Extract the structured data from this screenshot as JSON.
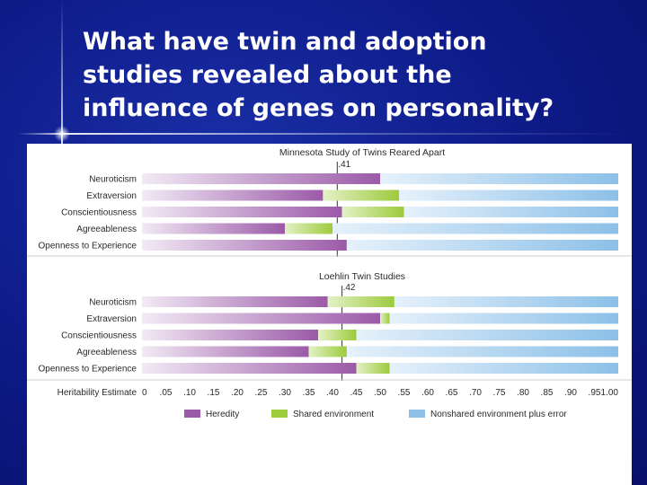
{
  "slide": {
    "title_lines": [
      "What have twin and adoption",
      "studies revealed about the",
      "influence of genes on personality?"
    ]
  },
  "chart_data": {
    "type": "stacked_bar",
    "traits": [
      "Neuroticism",
      "Extraversion",
      "Conscientiousness",
      "Agreeableness",
      "Openness to Experience"
    ],
    "x_axis": {
      "label": "Heritability Estimate",
      "range": [
        0,
        1.0
      ],
      "ticks": [
        "0",
        ".05",
        ".10",
        ".15",
        ".20",
        ".25",
        ".30",
        ".35",
        ".40",
        ".45",
        ".50",
        ".55",
        ".60",
        ".65",
        ".70",
        ".75",
        ".80",
        ".85",
        ".90",
        ".95",
        "1.00"
      ]
    },
    "legend": [
      {
        "key": "heredity",
        "label": "Heredity",
        "color": "#9b5aa8"
      },
      {
        "key": "shared",
        "label": "Shared environment",
        "color": "#9ccb3c"
      },
      {
        "key": "nonshared",
        "label": "Nonshared environment plus error",
        "color": "#8cc0e8"
      }
    ],
    "panels": [
      {
        "title": "Minnesota Study of Twins Reared Apart",
        "average_label": ".41",
        "average": 0.41,
        "bars": [
          {
            "trait": "Neuroticism",
            "heredity": 0.5,
            "shared": 0.0
          },
          {
            "trait": "Extraversion",
            "heredity": 0.38,
            "shared": 0.16
          },
          {
            "trait": "Conscientiousness",
            "heredity": 0.42,
            "shared": 0.13
          },
          {
            "trait": "Agreeableness",
            "heredity": 0.3,
            "shared": 0.1
          },
          {
            "trait": "Openness to Experience",
            "heredity": 0.43,
            "shared": 0.0
          }
        ]
      },
      {
        "title": "Loehlin Twin Studies",
        "average_label": ".42",
        "average": 0.42,
        "bars": [
          {
            "trait": "Neuroticism",
            "heredity": 0.39,
            "shared": 0.14
          },
          {
            "trait": "Extraversion",
            "heredity": 0.5,
            "shared": 0.02
          },
          {
            "trait": "Conscientiousness",
            "heredity": 0.37,
            "shared": 0.08
          },
          {
            "trait": "Agreeableness",
            "heredity": 0.35,
            "shared": 0.08
          },
          {
            "trait": "Openness to Experience",
            "heredity": 0.45,
            "shared": 0.07
          }
        ]
      }
    ]
  }
}
